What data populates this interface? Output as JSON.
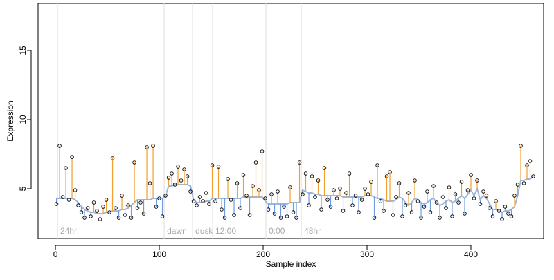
{
  "chart_data": {
    "type": "scatter",
    "xlabel": "Sample index",
    "ylabel": "Expression",
    "xlim": [
      -16.7,
      470
    ],
    "ylim": [
      1.4,
      18.4
    ],
    "xticks": [
      0,
      100,
      200,
      300,
      400
    ],
    "yticks": [
      5,
      10,
      15
    ],
    "x": [
      1,
      4,
      7,
      10,
      13,
      16,
      19,
      22,
      25,
      28,
      31,
      34,
      37,
      40,
      43,
      46,
      49,
      52,
      55,
      58,
      61,
      64,
      67,
      70,
      73,
      76,
      79,
      82,
      85,
      88,
      91,
      94,
      97,
      100,
      103,
      106,
      109,
      112,
      115,
      118,
      121,
      124,
      127,
      130,
      133,
      136,
      139,
      142,
      145,
      148,
      151,
      154,
      157,
      160,
      163,
      166,
      169,
      172,
      175,
      178,
      181,
      184,
      187,
      190,
      193,
      196,
      199,
      202,
      205,
      208,
      211,
      214,
      217,
      220,
      223,
      226,
      229,
      232,
      235,
      238,
      241,
      244,
      247,
      250,
      253,
      256,
      259,
      262,
      265,
      268,
      271,
      274,
      277,
      280,
      283,
      286,
      289,
      292,
      295,
      298,
      301,
      304,
      307,
      310,
      313,
      316,
      319,
      322,
      325,
      328,
      331,
      334,
      337,
      340,
      343,
      346,
      349,
      352,
      355,
      358,
      361,
      364,
      367,
      370,
      373,
      376,
      379,
      382,
      385,
      388,
      391,
      394,
      397,
      400,
      403,
      406,
      409,
      412,
      415,
      418,
      421,
      424,
      427,
      430,
      433,
      436,
      439,
      442,
      445,
      448,
      451,
      454,
      457,
      460
    ],
    "values": [
      3.9,
      8.1,
      4.4,
      6.5,
      4.2,
      7.3,
      4.9,
      3.8,
      3.3,
      2.9,
      3.6,
      3.0,
      4.0,
      3.4,
      2.8,
      3.7,
      4.2,
      3.3,
      7.2,
      3.6,
      2.9,
      4.5,
      3.1,
      3.8,
      2.9,
      6.9,
      3.6,
      4.0,
      3.2,
      8.0,
      5.4,
      8.1,
      3.7,
      4.3,
      3.0,
      4.5,
      5.8,
      6.1,
      5.3,
      6.6,
      5.6,
      6.4,
      5.9,
      4.8,
      4.1,
      3.8,
      4.4,
      4.1,
      4.7,
      3.9,
      6.7,
      4.1,
      6.6,
      3.5,
      2.9,
      5.7,
      4.2,
      3.1,
      5.4,
      3.6,
      6.0,
      4.5,
      3.1,
      5.2,
      6.9,
      4.9,
      7.7,
      4.3,
      3.5,
      4.6,
      3.2,
      4.8,
      2.9,
      3.7,
      3.0,
      5.1,
      3.3,
      2.9,
      6.9,
      4.6,
      6.1,
      3.8,
      5.9,
      4.4,
      5.6,
      3.5,
      6.5,
      4.2,
      3.7,
      4.9,
      4.3,
      5.0,
      3.4,
      4.7,
      6.1,
      3.8,
      4.5,
      3.3,
      4.2,
      5.0,
      4.6,
      5.5,
      2.9,
      6.7,
      4.1,
      3.4,
      5.9,
      6.2,
      3.1,
      4.4,
      5.4,
      3.0,
      3.8,
      4.7,
      3.3,
      5.6,
      4.1,
      2.9,
      3.7,
      4.8,
      3.3,
      5.2,
      4.0,
      2.9,
      4.4,
      3.6,
      5.1,
      3.0,
      4.6,
      4.0,
      5.5,
      3.2,
      4.9,
      6.0,
      4.3,
      5.6,
      3.9,
      4.8,
      4.5,
      3.6,
      3.0,
      4.1,
      3.4,
      2.8,
      3.7,
      3.2,
      3.0,
      4.5,
      5.3,
      8.1,
      5.4,
      6.7,
      7.0,
      5.9
    ],
    "fit": [
      4.3,
      4.3,
      4.3,
      4.3,
      4.3,
      4.3,
      4.2,
      4.0,
      3.7,
      3.5,
      3.4,
      3.3,
      3.3,
      3.2,
      3.2,
      3.2,
      3.3,
      3.3,
      3.4,
      3.4,
      3.4,
      3.5,
      3.5,
      3.6,
      3.8,
      4.0,
      4.2,
      4.2,
      4.2,
      4.2,
      4.2,
      4.3,
      4.3,
      4.3,
      4.3,
      4.5,
      5.2,
      5.2,
      5.3,
      5.3,
      5.3,
      5.3,
      5.3,
      5.2,
      4.2,
      4.0,
      4.0,
      4.0,
      4.1,
      4.1,
      4.3,
      4.3,
      4.3,
      4.3,
      4.3,
      4.3,
      4.3,
      4.3,
      4.3,
      4.3,
      4.4,
      4.4,
      4.4,
      4.4,
      4.4,
      4.4,
      4.4,
      4.1,
      3.9,
      3.9,
      3.9,
      3.9,
      3.9,
      3.9,
      3.9,
      4.0,
      4.0,
      4.0,
      4.0,
      4.9,
      4.8,
      4.7,
      4.7,
      4.6,
      4.6,
      4.5,
      4.5,
      4.5,
      4.5,
      4.5,
      4.5,
      4.5,
      4.4,
      4.4,
      4.4,
      4.4,
      4.4,
      4.4,
      4.4,
      4.5,
      4.5,
      4.5,
      4.4,
      4.3,
      4.3,
      4.2,
      4.1,
      4.1,
      4.1,
      4.2,
      4.4,
      4.3,
      4.0,
      3.8,
      4.0,
      4.3,
      4.2,
      4.0,
      3.9,
      4.0,
      4.2,
      4.3,
      4.0,
      3.8,
      3.9,
      4.1,
      4.2,
      4.0,
      4.1,
      4.3,
      4.5,
      4.3,
      4.6,
      4.9,
      4.5,
      5.0,
      4.2,
      4.5,
      4.3,
      3.9,
      3.5,
      3.5,
      3.4,
      3.3,
      3.4,
      3.4,
      3.5,
      3.7,
      4.5,
      5.6,
      5.6,
      5.7,
      5.7,
      5.9
    ],
    "above_color": "#f0a030",
    "below_color": "#6f9be0",
    "fit_color": "#9fb6d8",
    "marker_line_color": "#dddddd",
    "markers": [
      {
        "x": 2,
        "label": "24hr"
      },
      {
        "x": 104.7,
        "label": "dawn"
      },
      {
        "x": 132,
        "label": "dusk"
      },
      {
        "x": 151.3,
        "label": "12:00"
      },
      {
        "x": 202.7,
        "label": "0:00"
      },
      {
        "x": 236.7,
        "label": "48hr"
      }
    ]
  }
}
